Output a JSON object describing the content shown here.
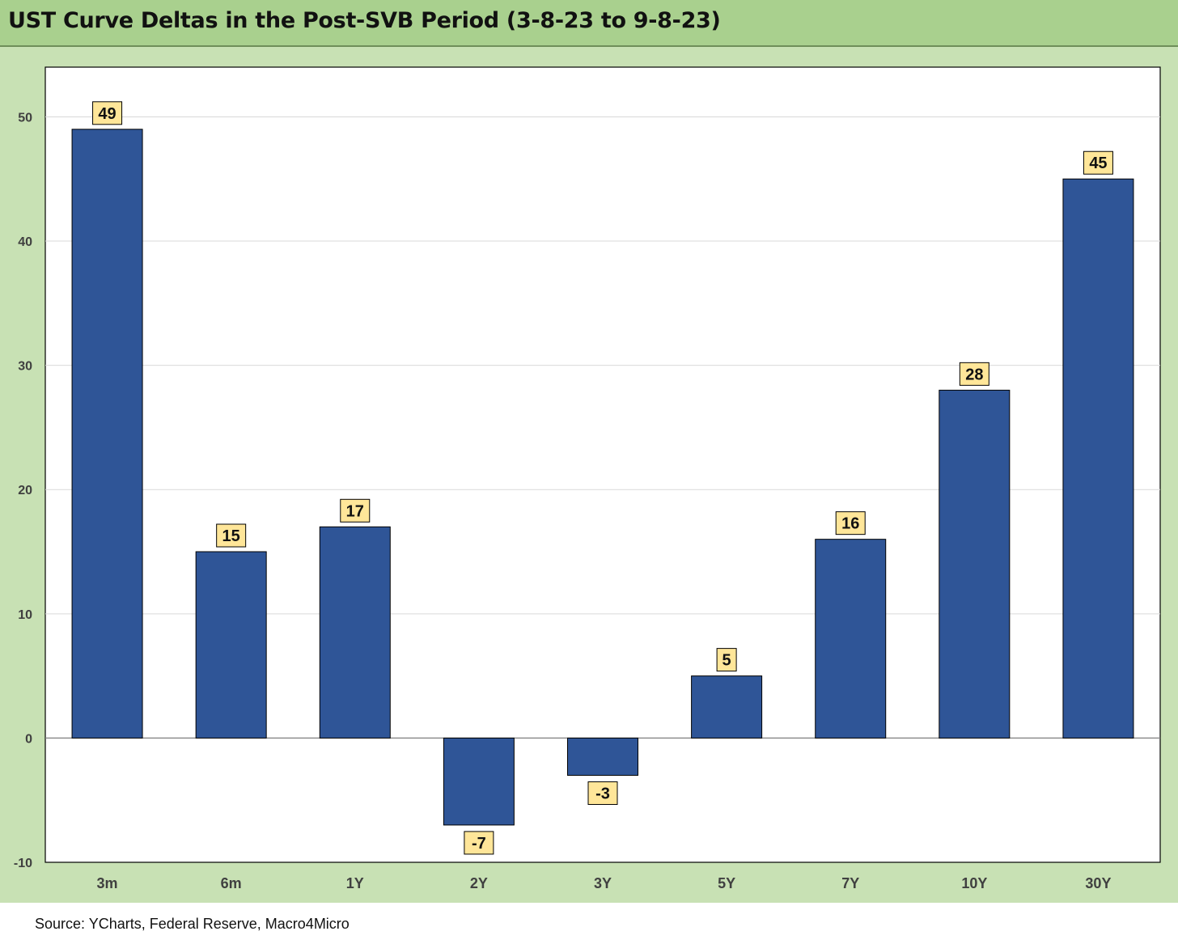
{
  "header": {
    "title": "UST Curve Deltas in the Post-SVB Period (3-8-23 to 9-8-23)"
  },
  "footer": {
    "source": "Source: YCharts, Federal Reserve, Macro4Micro"
  },
  "colors": {
    "bar": "#2f5597",
    "label_box": "#ffe699",
    "frame": "#c8e1b4",
    "title_bar": "#a9d08e"
  },
  "chart_data": {
    "type": "bar",
    "categories": [
      "3m",
      "6m",
      "1Y",
      "2Y",
      "3Y",
      "5Y",
      "7Y",
      "10Y",
      "30Y"
    ],
    "values": [
      49,
      15,
      17,
      -7,
      -3,
      5,
      16,
      28,
      45
    ],
    "title": "UST Curve Deltas in the Post-SVB Period (3-8-23 to 9-8-23)",
    "xlabel": "",
    "ylabel": "",
    "ylim": [
      -10,
      54
    ],
    "yticks": [
      -10,
      0,
      10,
      20,
      30,
      40,
      50
    ],
    "grid": true,
    "legend": "none",
    "data_labels": true
  }
}
